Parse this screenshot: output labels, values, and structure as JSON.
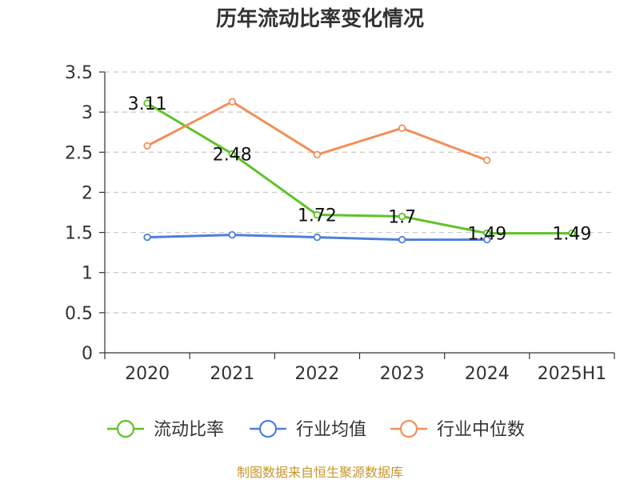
{
  "chart_data": {
    "type": "line",
    "title": "历年流动比率变化情况",
    "categories": [
      "2020",
      "2021",
      "2022",
      "2023",
      "2024",
      "2025H1"
    ],
    "ylim": [
      0,
      3.5
    ],
    "yticks": [
      "0",
      "0.5",
      "1",
      "1.5",
      "2",
      "2.5",
      "3",
      "3.5"
    ],
    "grid": true,
    "legend_position": "bottom",
    "series": [
      {
        "name": "流动比率",
        "color": "#5ec326",
        "values": [
          3.11,
          2.48,
          1.72,
          1.7,
          1.49,
          1.49
        ],
        "labels": [
          "3.11",
          "2.48",
          "1.72",
          "1.7",
          "1.49",
          "1.49"
        ]
      },
      {
        "name": "行业均值",
        "color": "#4f7fdc",
        "values": [
          1.44,
          1.47,
          1.44,
          1.41,
          1.41,
          null
        ]
      },
      {
        "name": "行业中位数",
        "color": "#f29059",
        "values": [
          2.58,
          3.13,
          2.47,
          2.8,
          2.4,
          null
        ]
      }
    ]
  },
  "source": "制图数据来自恒生聚源数据库"
}
